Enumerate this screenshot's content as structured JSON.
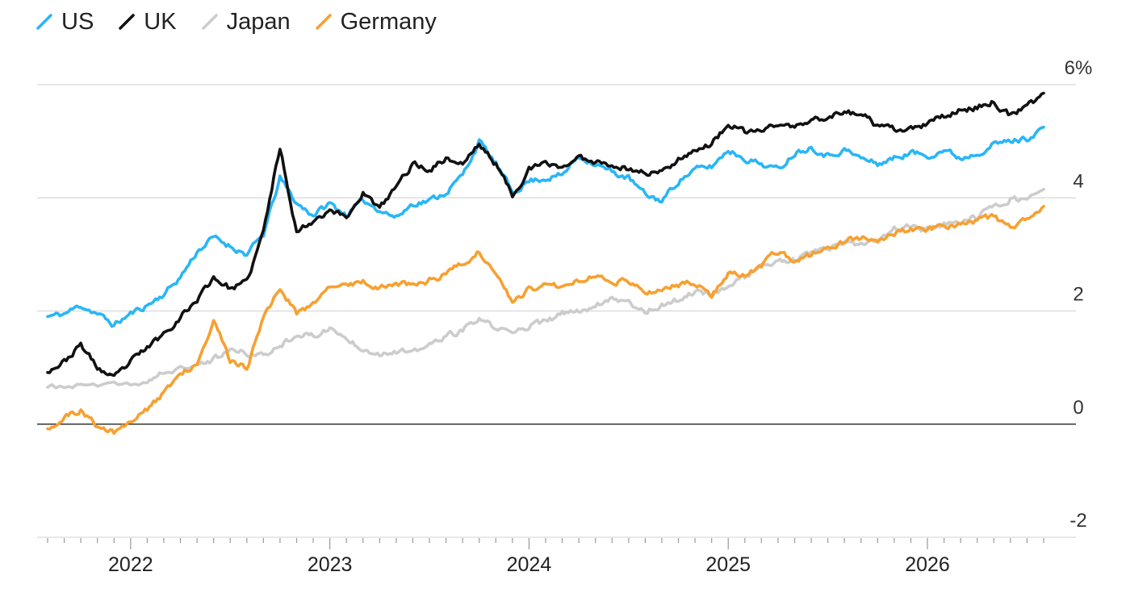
{
  "colors": {
    "US": "#29b6f6",
    "UK": "#111111",
    "Japan": "#cccccc",
    "Germany": "#f7a030",
    "grid": "#d9d9d9",
    "zero": "#333333",
    "axis": "#999999"
  },
  "legend": [
    "US",
    "UK",
    "Japan",
    "Germany"
  ],
  "chart_data": {
    "type": "line",
    "title": "",
    "xlabel": "",
    "ylabel": "",
    "x_tick_labels": [
      "2022",
      "2023",
      "2024",
      "2025",
      "2026"
    ],
    "y_tick_labels": [
      "6%",
      "4",
      "2",
      "0",
      "-2"
    ],
    "ylim": [
      -2,
      6
    ],
    "xlim": [
      "2021-08",
      "2026-08"
    ],
    "grid": true,
    "legend_position": "top-left",
    "series": [
      {
        "name": "US",
        "points": [
          [
            "2021-08",
            1.9
          ],
          [
            "2021-09",
            1.95
          ],
          [
            "2021-10",
            2.1
          ],
          [
            "2021-11",
            1.95
          ],
          [
            "2021-12",
            1.75
          ],
          [
            "2022-01",
            1.95
          ],
          [
            "2022-02",
            2.1
          ],
          [
            "2022-03",
            2.3
          ],
          [
            "2022-04",
            2.6
          ],
          [
            "2022-05",
            3.05
          ],
          [
            "2022-06",
            3.3
          ],
          [
            "2022-07",
            3.15
          ],
          [
            "2022-08",
            3.0
          ],
          [
            "2022-09",
            3.35
          ],
          [
            "2022-10",
            4.35
          ],
          [
            "2022-11",
            3.9
          ],
          [
            "2022-12",
            3.7
          ],
          [
            "2023-01",
            3.9
          ],
          [
            "2023-02",
            3.7
          ],
          [
            "2023-03",
            3.95
          ],
          [
            "2023-04",
            3.8
          ],
          [
            "2023-05",
            3.65
          ],
          [
            "2023-06",
            3.9
          ],
          [
            "2023-07",
            3.95
          ],
          [
            "2023-08",
            4.1
          ],
          [
            "2023-09",
            4.4
          ],
          [
            "2023-10",
            5.0
          ],
          [
            "2023-11",
            4.6
          ],
          [
            "2023-12",
            4.1
          ],
          [
            "2024-01",
            4.3
          ],
          [
            "2024-02",
            4.35
          ],
          [
            "2024-03",
            4.4
          ],
          [
            "2024-04",
            4.75
          ],
          [
            "2024-05",
            4.6
          ],
          [
            "2024-06",
            4.45
          ],
          [
            "2024-07",
            4.35
          ],
          [
            "2024-08",
            4.05
          ],
          [
            "2024-09",
            3.95
          ],
          [
            "2024-10",
            4.3
          ],
          [
            "2024-11",
            4.5
          ],
          [
            "2024-12",
            4.55
          ],
          [
            "2025-01",
            4.85
          ],
          [
            "2025-02",
            4.7
          ],
          [
            "2025-03",
            4.6
          ],
          [
            "2025-04",
            4.5
          ],
          [
            "2025-05",
            4.8
          ],
          [
            "2025-06",
            4.9
          ],
          [
            "2025-07",
            4.75
          ],
          [
            "2025-08",
            4.85
          ],
          [
            "2025-09",
            4.7
          ],
          [
            "2025-10",
            4.6
          ],
          [
            "2025-11",
            4.7
          ],
          [
            "2025-12",
            4.8
          ],
          [
            "2026-01",
            4.75
          ],
          [
            "2026-02",
            4.85
          ],
          [
            "2026-03",
            4.7
          ],
          [
            "2026-04",
            4.8
          ],
          [
            "2026-05",
            4.95
          ],
          [
            "2026-06",
            5.0
          ],
          [
            "2026-07",
            5.05
          ],
          [
            "2026-08",
            5.25
          ]
        ]
      },
      {
        "name": "UK",
        "points": [
          [
            "2021-08",
            0.95
          ],
          [
            "2021-09",
            1.1
          ],
          [
            "2021-10",
            1.4
          ],
          [
            "2021-11",
            1.0
          ],
          [
            "2021-12",
            0.8
          ],
          [
            "2022-01",
            1.1
          ],
          [
            "2022-02",
            1.35
          ],
          [
            "2022-03",
            1.6
          ],
          [
            "2022-04",
            1.9
          ],
          [
            "2022-05",
            2.2
          ],
          [
            "2022-06",
            2.6
          ],
          [
            "2022-07",
            2.4
          ],
          [
            "2022-08",
            2.5
          ],
          [
            "2022-09",
            3.4
          ],
          [
            "2022-10",
            4.9
          ],
          [
            "2022-11",
            3.4
          ],
          [
            "2022-12",
            3.6
          ],
          [
            "2023-01",
            3.8
          ],
          [
            "2023-02",
            3.65
          ],
          [
            "2023-03",
            4.1
          ],
          [
            "2023-04",
            3.8
          ],
          [
            "2023-05",
            4.2
          ],
          [
            "2023-06",
            4.6
          ],
          [
            "2023-07",
            4.5
          ],
          [
            "2023-08",
            4.7
          ],
          [
            "2023-09",
            4.6
          ],
          [
            "2023-10",
            4.95
          ],
          [
            "2023-11",
            4.6
          ],
          [
            "2023-12",
            4.05
          ],
          [
            "2024-01",
            4.5
          ],
          [
            "2024-02",
            4.6
          ],
          [
            "2024-03",
            4.55
          ],
          [
            "2024-04",
            4.7
          ],
          [
            "2024-05",
            4.65
          ],
          [
            "2024-06",
            4.6
          ],
          [
            "2024-07",
            4.5
          ],
          [
            "2024-08",
            4.45
          ],
          [
            "2024-09",
            4.45
          ],
          [
            "2024-10",
            4.7
          ],
          [
            "2024-11",
            4.85
          ],
          [
            "2024-12",
            4.95
          ],
          [
            "2025-01",
            5.3
          ],
          [
            "2025-02",
            5.15
          ],
          [
            "2025-03",
            5.2
          ],
          [
            "2025-04",
            5.3
          ],
          [
            "2025-05",
            5.25
          ],
          [
            "2025-06",
            5.35
          ],
          [
            "2025-07",
            5.45
          ],
          [
            "2025-08",
            5.5
          ],
          [
            "2025-09",
            5.5
          ],
          [
            "2025-10",
            5.25
          ],
          [
            "2025-11",
            5.2
          ],
          [
            "2025-12",
            5.2
          ],
          [
            "2026-01",
            5.3
          ],
          [
            "2026-02",
            5.45
          ],
          [
            "2026-03",
            5.55
          ],
          [
            "2026-04",
            5.6
          ],
          [
            "2026-05",
            5.7
          ],
          [
            "2026-06",
            5.45
          ],
          [
            "2026-07",
            5.6
          ],
          [
            "2026-08",
            5.85
          ]
        ]
      },
      {
        "name": "Japan",
        "points": [
          [
            "2021-08",
            0.65
          ],
          [
            "2021-10",
            0.68
          ],
          [
            "2021-12",
            0.67
          ],
          [
            "2022-02",
            0.75
          ],
          [
            "2022-03",
            0.9
          ],
          [
            "2022-05",
            1.05
          ],
          [
            "2022-06",
            1.15
          ],
          [
            "2022-07",
            1.3
          ],
          [
            "2022-08",
            1.25
          ],
          [
            "2022-09",
            1.2
          ],
          [
            "2022-10",
            1.4
          ],
          [
            "2022-11",
            1.6
          ],
          [
            "2022-12",
            1.55
          ],
          [
            "2023-01",
            1.7
          ],
          [
            "2023-02",
            1.5
          ],
          [
            "2023-03",
            1.35
          ],
          [
            "2023-04",
            1.25
          ],
          [
            "2023-05",
            1.3
          ],
          [
            "2023-06",
            1.25
          ],
          [
            "2023-07",
            1.4
          ],
          [
            "2023-08",
            1.55
          ],
          [
            "2023-09",
            1.65
          ],
          [
            "2023-10",
            1.85
          ],
          [
            "2023-11",
            1.7
          ],
          [
            "2023-12",
            1.6
          ],
          [
            "2024-01",
            1.75
          ],
          [
            "2024-02",
            1.8
          ],
          [
            "2024-03",
            1.95
          ],
          [
            "2024-04",
            2.0
          ],
          [
            "2024-05",
            2.1
          ],
          [
            "2024-06",
            2.25
          ],
          [
            "2024-07",
            2.15
          ],
          [
            "2024-08",
            2.0
          ],
          [
            "2024-09",
            2.1
          ],
          [
            "2024-10",
            2.2
          ],
          [
            "2024-11",
            2.35
          ],
          [
            "2024-12",
            2.3
          ],
          [
            "2025-01",
            2.45
          ],
          [
            "2025-02",
            2.6
          ],
          [
            "2025-03",
            2.8
          ],
          [
            "2025-04",
            2.85
          ],
          [
            "2025-05",
            2.9
          ],
          [
            "2025-06",
            3.0
          ],
          [
            "2025-07",
            3.1
          ],
          [
            "2025-08",
            3.2
          ],
          [
            "2025-09",
            3.15
          ],
          [
            "2025-10",
            3.25
          ],
          [
            "2025-11",
            3.45
          ],
          [
            "2025-12",
            3.5
          ],
          [
            "2026-01",
            3.45
          ],
          [
            "2026-02",
            3.5
          ],
          [
            "2026-03",
            3.6
          ],
          [
            "2026-04",
            3.65
          ],
          [
            "2026-05",
            3.85
          ],
          [
            "2026-06",
            4.0
          ],
          [
            "2026-07",
            3.95
          ],
          [
            "2026-08",
            4.15
          ]
        ]
      },
      {
        "name": "Germany",
        "points": [
          [
            "2021-08",
            -0.05
          ],
          [
            "2021-09",
            0.1
          ],
          [
            "2021-10",
            0.25
          ],
          [
            "2021-11",
            -0.05
          ],
          [
            "2021-12",
            -0.15
          ],
          [
            "2022-01",
            0.05
          ],
          [
            "2022-02",
            0.25
          ],
          [
            "2022-03",
            0.55
          ],
          [
            "2022-04",
            0.9
          ],
          [
            "2022-05",
            1.1
          ],
          [
            "2022-06",
            1.85
          ],
          [
            "2022-07",
            1.1
          ],
          [
            "2022-08",
            1.0
          ],
          [
            "2022-09",
            1.9
          ],
          [
            "2022-10",
            2.4
          ],
          [
            "2022-11",
            1.95
          ],
          [
            "2022-12",
            2.15
          ],
          [
            "2023-01",
            2.4
          ],
          [
            "2023-02",
            2.45
          ],
          [
            "2023-03",
            2.55
          ],
          [
            "2023-04",
            2.4
          ],
          [
            "2023-05",
            2.5
          ],
          [
            "2023-06",
            2.45
          ],
          [
            "2023-07",
            2.55
          ],
          [
            "2023-08",
            2.65
          ],
          [
            "2023-09",
            2.85
          ],
          [
            "2023-10",
            3.05
          ],
          [
            "2023-11",
            2.7
          ],
          [
            "2023-12",
            2.15
          ],
          [
            "2024-01",
            2.4
          ],
          [
            "2024-02",
            2.45
          ],
          [
            "2024-03",
            2.45
          ],
          [
            "2024-04",
            2.55
          ],
          [
            "2024-05",
            2.65
          ],
          [
            "2024-06",
            2.55
          ],
          [
            "2024-07",
            2.5
          ],
          [
            "2024-08",
            2.35
          ],
          [
            "2024-09",
            2.4
          ],
          [
            "2024-10",
            2.45
          ],
          [
            "2024-11",
            2.5
          ],
          [
            "2024-12",
            2.3
          ],
          [
            "2025-01",
            2.65
          ],
          [
            "2025-02",
            2.6
          ],
          [
            "2025-03",
            2.8
          ],
          [
            "2025-04",
            3.05
          ],
          [
            "2025-05",
            2.85
          ],
          [
            "2025-06",
            3.0
          ],
          [
            "2025-07",
            3.1
          ],
          [
            "2025-08",
            3.25
          ],
          [
            "2025-09",
            3.3
          ],
          [
            "2025-10",
            3.2
          ],
          [
            "2025-11",
            3.35
          ],
          [
            "2025-12",
            3.45
          ],
          [
            "2026-01",
            3.45
          ],
          [
            "2026-02",
            3.5
          ],
          [
            "2026-03",
            3.55
          ],
          [
            "2026-04",
            3.6
          ],
          [
            "2026-05",
            3.65
          ],
          [
            "2026-06",
            3.5
          ],
          [
            "2026-07",
            3.6
          ],
          [
            "2026-08",
            3.85
          ]
        ]
      }
    ]
  }
}
